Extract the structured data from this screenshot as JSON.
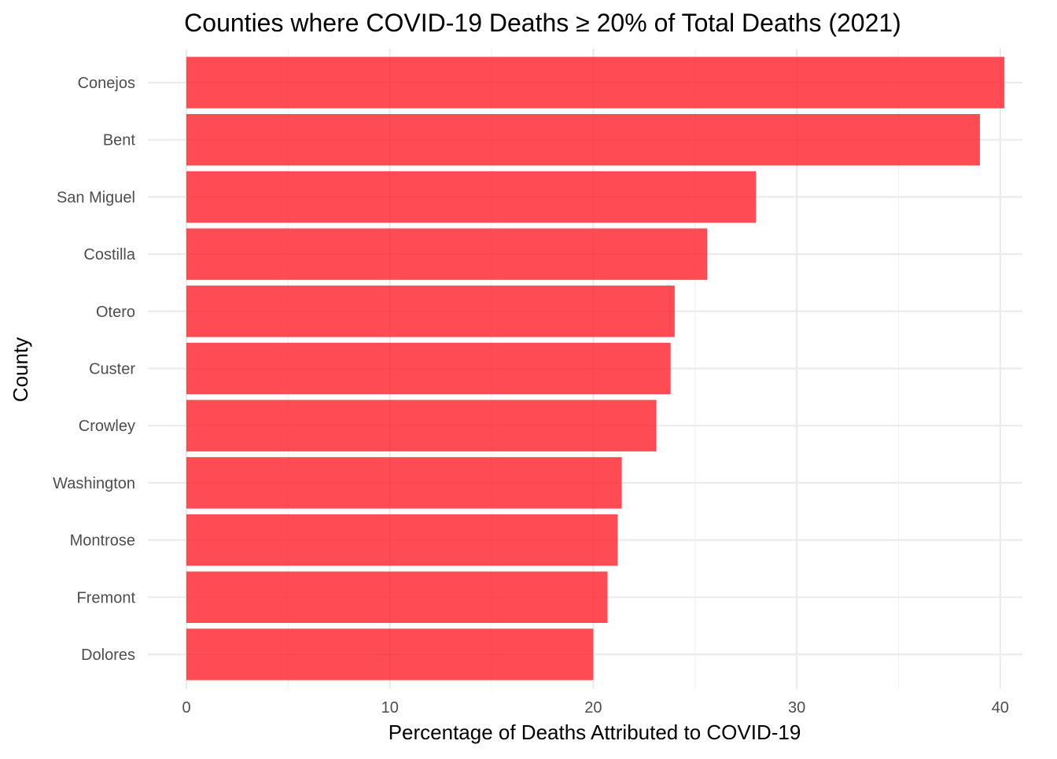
{
  "chart_data": {
    "type": "bar",
    "orientation": "horizontal",
    "title": "Counties where COVID-19 Deaths ≥ 20% of Total Deaths (2021)",
    "xlabel": "Percentage of Deaths Attributed to COVID-19",
    "ylabel": "County",
    "categories": [
      "Conejos",
      "Bent",
      "San Miguel",
      "Costilla",
      "Otero",
      "Custer",
      "Crowley",
      "Washington",
      "Montrose",
      "Fremont",
      "Dolores"
    ],
    "values": [
      40.2,
      39.0,
      28.0,
      25.6,
      24.0,
      23.8,
      23.1,
      21.4,
      21.2,
      20.7,
      20.0
    ],
    "xlim": [
      0,
      40.2
    ],
    "xticks": [
      0,
      10,
      20,
      30,
      40
    ],
    "grid": true,
    "legend": "none",
    "colors": {
      "bar": "#ff1a24",
      "bar_opacity": 0.78,
      "grid_major": "#ebebeb",
      "grid_minor": "#f2f2f2",
      "tick_text": "#4d4d4d",
      "title_text": "#000000"
    }
  }
}
